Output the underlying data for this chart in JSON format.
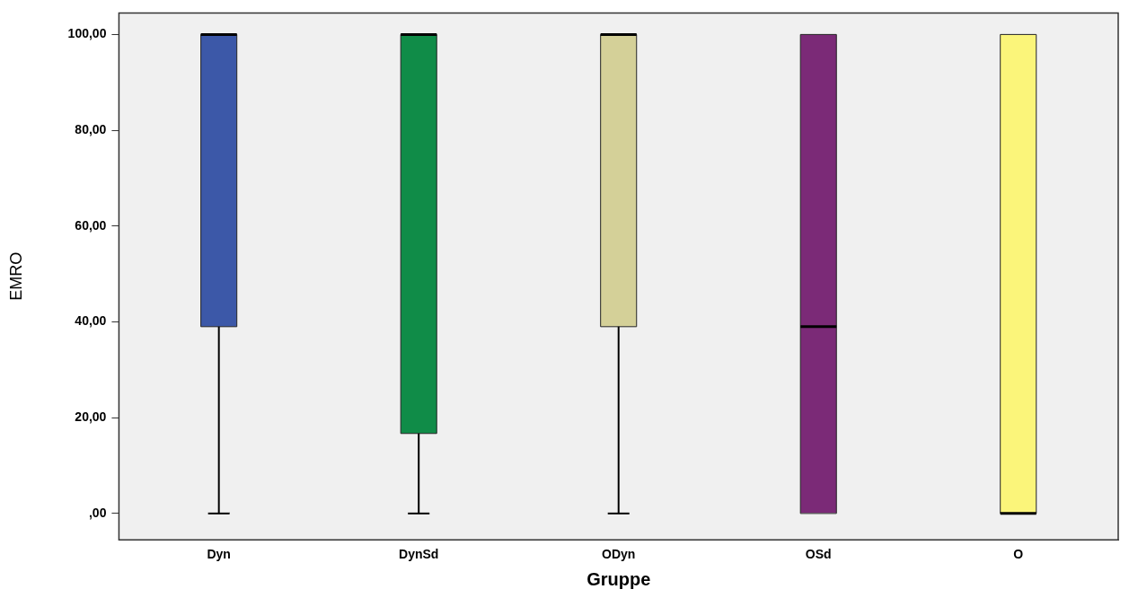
{
  "chart_data": {
    "type": "box",
    "xlabel": "Gruppe",
    "ylabel": "EMRO",
    "categories": [
      "Dyn",
      "DynSd",
      "ODyn",
      "OSd",
      "O"
    ],
    "colors": [
      "#3c58a8",
      "#108c48",
      "#d4d098",
      "#7b2a77",
      "#fbf57a"
    ],
    "boxes": [
      {
        "low": 0,
        "q1": 39,
        "median": 100,
        "q3": 100,
        "high": 100
      },
      {
        "low": 0,
        "q1": 16.7,
        "median": 100,
        "q3": 100,
        "high": 100
      },
      {
        "low": 0,
        "q1": 39,
        "median": 100,
        "q3": 100,
        "high": 100
      },
      {
        "low": 0,
        "q1": 0,
        "median": 39,
        "q3": 100,
        "high": 100
      },
      {
        "low": 0,
        "q1": 0,
        "median": 0,
        "q3": 100,
        "high": 100
      }
    ],
    "ylim": [
      -5.5,
      104.5
    ],
    "yticks": [
      {
        "value": 0,
        "label": ",00"
      },
      {
        "value": 20,
        "label": "20,00"
      },
      {
        "value": 40,
        "label": "40,00"
      },
      {
        "value": 60,
        "label": "60,00"
      },
      {
        "value": 80,
        "label": "80,00"
      },
      {
        "value": 100,
        "label": "100,00"
      }
    ],
    "grid": false,
    "legend": false
  }
}
